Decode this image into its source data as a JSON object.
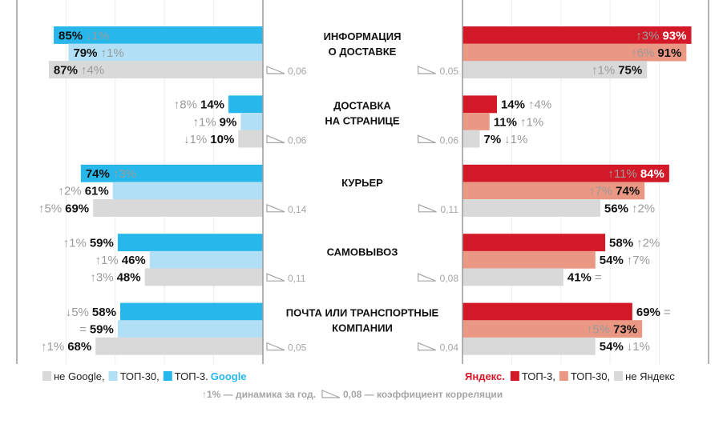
{
  "chart_data": {
    "type": "bar",
    "orientation": "horizontal-butterfly",
    "xlim": [
      0,
      100
    ],
    "grid": true,
    "colors": {
      "google_top3": "#27b7ea",
      "google_top30": "#b1dff6",
      "not_google": "#d9d9d9",
      "yandex_top3": "#d31827",
      "yandex_top30": "#ea9784",
      "not_yandex": "#d9d9d9",
      "google_brand": "#27b7ea",
      "yandex_brand": "#d31827",
      "delta_text": "#9b9b9b"
    },
    "categories": [
      {
        "label": [
          "ИНФОРМАЦИЯ",
          "О ДОСТАВКЕ"
        ],
        "google": [
          {
            "value": 85,
            "delta": "↓1%"
          },
          {
            "value": 79,
            "delta": "↑1%"
          },
          {
            "value": 87,
            "delta": "↑4%"
          }
        ],
        "google_corr": "0,06",
        "yandex": [
          {
            "value": 93,
            "delta": "↑3%"
          },
          {
            "value": 91,
            "delta": "↑6%"
          },
          {
            "value": 75,
            "delta": "↑1%"
          }
        ],
        "yandex_corr": "0,05"
      },
      {
        "label": [
          "ДОСТАВКА",
          "НА СТРАНИЦЕ"
        ],
        "google": [
          {
            "value": 14,
            "delta": "↑8%"
          },
          {
            "value": 9,
            "delta": "↑1%"
          },
          {
            "value": 10,
            "delta": "↓1%"
          }
        ],
        "google_corr": "0,06",
        "yandex": [
          {
            "value": 14,
            "delta": "↑4%"
          },
          {
            "value": 11,
            "delta": "↑1%"
          },
          {
            "value": 7,
            "delta": "↓1%"
          }
        ],
        "yandex_corr": "0,06"
      },
      {
        "label": [
          "КУРЬЕР"
        ],
        "google": [
          {
            "value": 74,
            "delta": "↑3%"
          },
          {
            "value": 61,
            "delta": "↑2%"
          },
          {
            "value": 69,
            "delta": "↑5%"
          }
        ],
        "google_corr": "0,14",
        "yandex": [
          {
            "value": 84,
            "delta": "↑11%"
          },
          {
            "value": 74,
            "delta": "↑7%"
          },
          {
            "value": 56,
            "delta": "↑2%"
          }
        ],
        "yandex_corr": "0,11"
      },
      {
        "label": [
          "САМОВЫВОЗ"
        ],
        "google": [
          {
            "value": 59,
            "delta": "↑1%"
          },
          {
            "value": 46,
            "delta": "↑1%"
          },
          {
            "value": 48,
            "delta": "↑3%"
          }
        ],
        "google_corr": "0,11",
        "yandex": [
          {
            "value": 58,
            "delta": "↑2%"
          },
          {
            "value": 54,
            "delta": "↑7%"
          },
          {
            "value": 41,
            "delta": "="
          }
        ],
        "yandex_corr": "0,08"
      },
      {
        "label": [
          "ПОЧТА ИЛИ ТРАНСПОРТНЫЕ",
          "КОМПАНИИ"
        ],
        "google": [
          {
            "value": 58,
            "delta": "↓5%"
          },
          {
            "value": 59,
            "delta": "="
          },
          {
            "value": 68,
            "delta": "↑1%"
          }
        ],
        "google_corr": "0,05",
        "yandex": [
          {
            "value": 69,
            "delta": "="
          },
          {
            "value": 73,
            "delta": "↑5%"
          },
          {
            "value": 54,
            "delta": "↓1%"
          }
        ],
        "yandex_corr": "0,04"
      }
    ],
    "legend": {
      "google": [
        {
          "key": "not_google",
          "label": "не Google,"
        },
        {
          "key": "google_top30",
          "label": "ТОП-30,"
        },
        {
          "key": "google_top3",
          "label": "ТОП-3."
        }
      ],
      "google_brand": "Google",
      "yandex_brand": "Яндекс.",
      "yandex": [
        {
          "key": "yandex_top3",
          "label": "ТОП-3,"
        },
        {
          "key": "yandex_top30",
          "label": "ТОП-30,"
        },
        {
          "key": "not_yandex",
          "label": "не Яндекс"
        }
      ]
    },
    "footnote": {
      "delta_example": "↑1% — динамика за год.",
      "corr_example": "0,08 — коэффициент корреляции"
    }
  }
}
